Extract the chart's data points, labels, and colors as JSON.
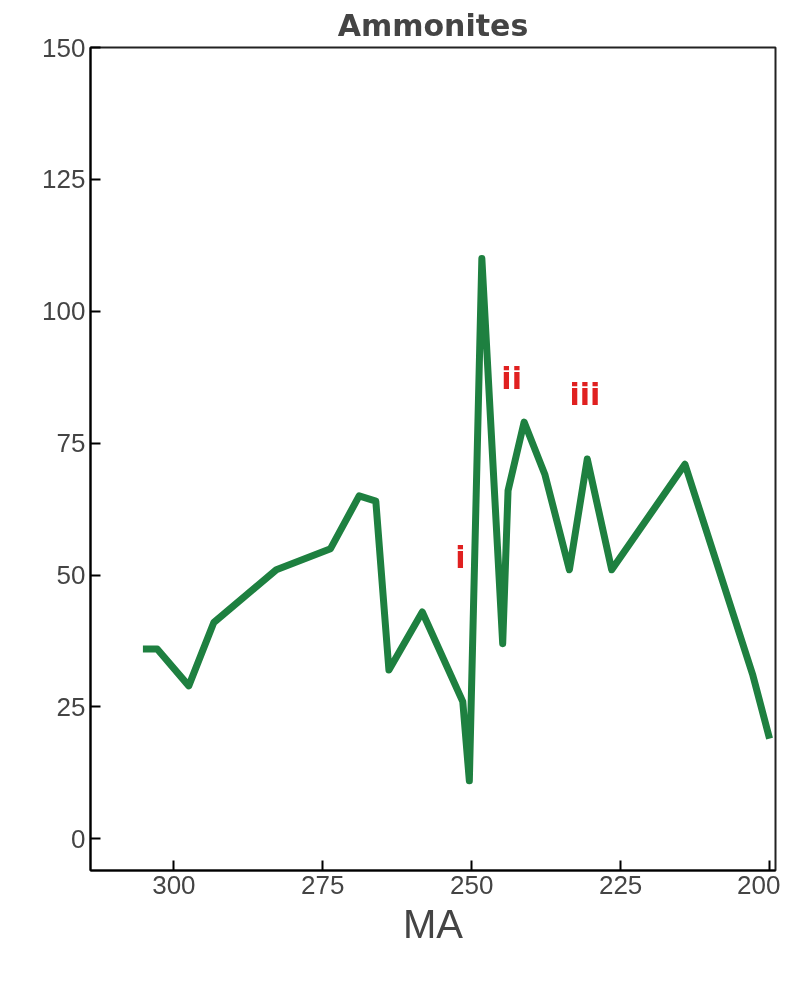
{
  "chart_data": {
    "type": "line",
    "title": "Ammonites",
    "xlabel": "MA",
    "x": [
      305.2,
      302.8,
      297.5,
      293.3,
      282.8,
      273.7,
      268.9,
      266.1,
      263.9,
      258.3,
      251.5,
      250.4,
      248.3,
      244.8,
      243.9,
      241.2,
      237.7,
      233.6,
      230.6,
      226.5,
      214.2,
      202.8,
      200
    ],
    "series": [
      {
        "color": "#1e8040",
        "values": [
          36,
          36,
          29,
          41,
          51,
          55,
          65,
          64,
          32,
          43,
          26,
          11,
          110,
          37,
          66,
          79,
          69,
          51,
          72,
          51,
          71,
          31,
          19
        ]
      }
    ],
    "xlim": [
      314,
      199
    ],
    "ylim": [
      -6,
      150
    ],
    "xticks": [
      300,
      275,
      250,
      225,
      200
    ],
    "yticks": [
      0,
      25,
      50,
      75,
      100,
      125,
      150
    ],
    "annotations": [
      "i",
      "ii",
      "iii"
    ],
    "marker": "none",
    "line_style": "solid"
  }
}
